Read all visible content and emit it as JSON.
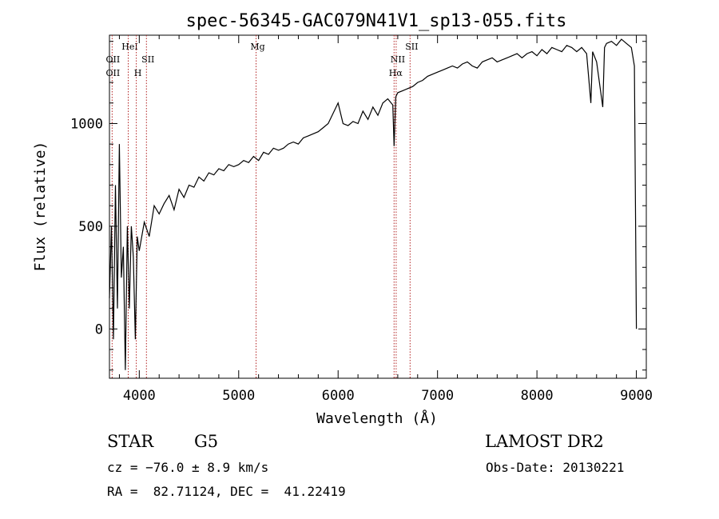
{
  "chart_data": {
    "type": "line",
    "title": "spec-56345-GAC079N41V1_sp13-055.fits",
    "xlabel": "Wavelength (Å)",
    "ylabel": "Flux (relative)",
    "xlim": [
      3700,
      9100
    ],
    "ylim": [
      -240,
      1430
    ],
    "x_ticks": [
      4000,
      5000,
      6000,
      7000,
      8000,
      9000
    ],
    "y_ticks": [
      0,
      500,
      1000
    ],
    "series": [
      {
        "x": [
          3700,
          3720,
          3740,
          3760,
          3780,
          3800,
          3820,
          3840,
          3860,
          3880,
          3900,
          3920,
          3940,
          3960,
          3980,
          4000,
          4050,
          4100,
          4150,
          4200,
          4250,
          4300,
          4350,
          4400,
          4450,
          4500,
          4550,
          4600,
          4650,
          4700,
          4750,
          4800,
          4850,
          4900,
          4950,
          5000,
          5050,
          5100,
          5150,
          5200,
          5250,
          5300,
          5350,
          5400,
          5450,
          5500,
          5550,
          5600,
          5650,
          5700,
          5750,
          5800,
          5850,
          5900,
          5950,
          6000,
          6050,
          6100,
          6150,
          6200,
          6250,
          6300,
          6350,
          6400,
          6450,
          6500,
          6550,
          6563,
          6580,
          6600,
          6650,
          6700,
          6750,
          6800,
          6850,
          6900,
          6950,
          7000,
          7050,
          7100,
          7150,
          7200,
          7250,
          7300,
          7350,
          7400,
          7450,
          7500,
          7550,
          7600,
          7650,
          7700,
          7750,
          7800,
          7850,
          7900,
          7950,
          8000,
          8050,
          8100,
          8150,
          8200,
          8250,
          8300,
          8350,
          8400,
          8450,
          8500,
          8542,
          8560,
          8600,
          8662,
          8680,
          8700,
          8750,
          8800,
          8850,
          8900,
          8950,
          8980,
          9000
        ],
        "y": [
          150,
          500,
          -50,
          700,
          100,
          900,
          250,
          400,
          -200,
          500,
          100,
          500,
          350,
          -50,
          450,
          380,
          520,
          450,
          600,
          560,
          610,
          650,
          580,
          680,
          640,
          700,
          690,
          740,
          720,
          760,
          750,
          780,
          770,
          800,
          790,
          800,
          820,
          810,
          840,
          820,
          860,
          850,
          880,
          870,
          880,
          900,
          910,
          900,
          930,
          940,
          950,
          960,
          980,
          1000,
          1050,
          1100,
          1000,
          990,
          1010,
          1000,
          1060,
          1020,
          1080,
          1040,
          1100,
          1120,
          1090,
          890,
          1130,
          1150,
          1160,
          1170,
          1180,
          1200,
          1210,
          1230,
          1240,
          1250,
          1260,
          1270,
          1280,
          1270,
          1290,
          1300,
          1280,
          1270,
          1300,
          1310,
          1320,
          1300,
          1310,
          1320,
          1330,
          1340,
          1320,
          1340,
          1350,
          1330,
          1360,
          1340,
          1370,
          1360,
          1350,
          1380,
          1370,
          1350,
          1370,
          1340,
          1100,
          1350,
          1300,
          1080,
          1370,
          1390,
          1400,
          1380,
          1410,
          1390,
          1370,
          1280,
          0
        ]
      }
    ],
    "line_markers": [
      {
        "label": "OII",
        "x": 3727
      },
      {
        "label": "HeI",
        "x": 3889
      },
      {
        "label": "H",
        "x": 3970
      },
      {
        "label": "SII",
        "x": 4072
      },
      {
        "label": "Mg",
        "x": 5175
      },
      {
        "label": "NII",
        "x": 6584
      },
      {
        "label": "Hα",
        "x": 6563
      },
      {
        "label": "SII",
        "x": 6724
      }
    ]
  },
  "info": {
    "object_class": "STAR",
    "subclass": "G5",
    "survey": "LAMOST DR2",
    "cz": "cz = −76.0 ± 8.9 km/s",
    "obs_date": "Obs-Date: 20130221",
    "coords": "RA =  82.71124, DEC =  41.22419"
  },
  "colors": {
    "line": "#000000",
    "marker": "#b22222"
  }
}
